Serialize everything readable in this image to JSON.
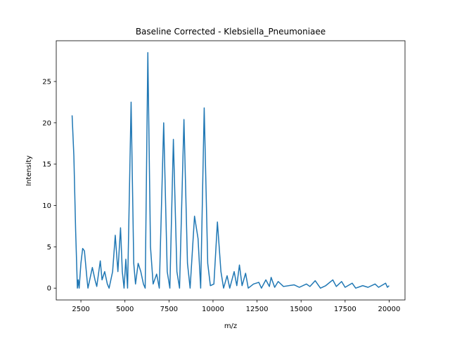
{
  "chart_data": {
    "type": "line",
    "title": "Baseline Corrected - Klebsiella_Pneumoniaee",
    "x_label": "m/z",
    "y_label": "Intensity",
    "x": [
      2000,
      2100,
      2200,
      2300,
      2350,
      2400,
      2500,
      2600,
      2700,
      2850,
      2900,
      3000,
      3150,
      3300,
      3400,
      3600,
      3700,
      3850,
      4000,
      4100,
      4300,
      4450,
      4600,
      4750,
      4850,
      4950,
      5050,
      5150,
      5350,
      5500,
      5600,
      5750,
      5900,
      6050,
      6150,
      6300,
      6450,
      6600,
      6800,
      6950,
      7200,
      7400,
      7550,
      7750,
      7950,
      8100,
      8350,
      8550,
      8700,
      8950,
      9150,
      9300,
      9500,
      9700,
      9850,
      10050,
      10250,
      10450,
      10600,
      10800,
      10950,
      11200,
      11350,
      11500,
      11650,
      11850,
      12000,
      12300,
      12600,
      12750,
      13000,
      13200,
      13300,
      13500,
      13700,
      14000,
      14600,
      14900,
      15300,
      15500,
      15800,
      16100,
      16400,
      16800,
      17000,
      17300,
      17500,
      17900,
      18100,
      18500,
      18800,
      19200,
      19400,
      19800,
      19900,
      20000
    ],
    "series": [
      {
        "name": "Intensity",
        "color": "#1f77b4",
        "values": [
          20.9,
          16,
          7,
          0,
          1,
          0,
          3,
          4.8,
          4.5,
          1,
          0,
          1,
          2.5,
          1,
          0.2,
          3.3,
          1,
          2,
          0.5,
          0,
          2,
          6.4,
          2,
          7.3,
          2,
          0,
          3.5,
          0,
          22.5,
          3,
          0.5,
          3,
          2,
          0.5,
          0,
          28.5,
          5,
          0.5,
          1.7,
          0,
          20,
          2,
          0,
          18,
          2,
          0,
          20.4,
          3,
          0,
          8.7,
          6,
          0,
          21.8,
          3,
          0.3,
          0.5,
          8,
          2,
          0,
          1.5,
          0,
          2,
          0.3,
          2.8,
          0.3,
          1.8,
          0,
          0.5,
          0.7,
          0,
          1,
          0.2,
          1.3,
          0.1,
          0.8,
          0.2,
          0.4,
          0.1,
          0.5,
          0.2,
          0.9,
          0,
          0.3,
          1,
          0.2,
          0.8,
          0.1,
          0.6,
          0,
          0.3,
          0.1,
          0.5,
          0.1,
          0.6,
          0.1,
          0.3
        ]
      }
    ],
    "xlim": [
      1100,
      20900
    ],
    "ylim": [
      -1.43,
      29.93
    ],
    "xticks": [
      2500,
      5000,
      7500,
      10000,
      12500,
      15000,
      17500,
      20000
    ],
    "yticks": [
      0,
      5,
      10,
      15,
      20,
      25
    ]
  }
}
